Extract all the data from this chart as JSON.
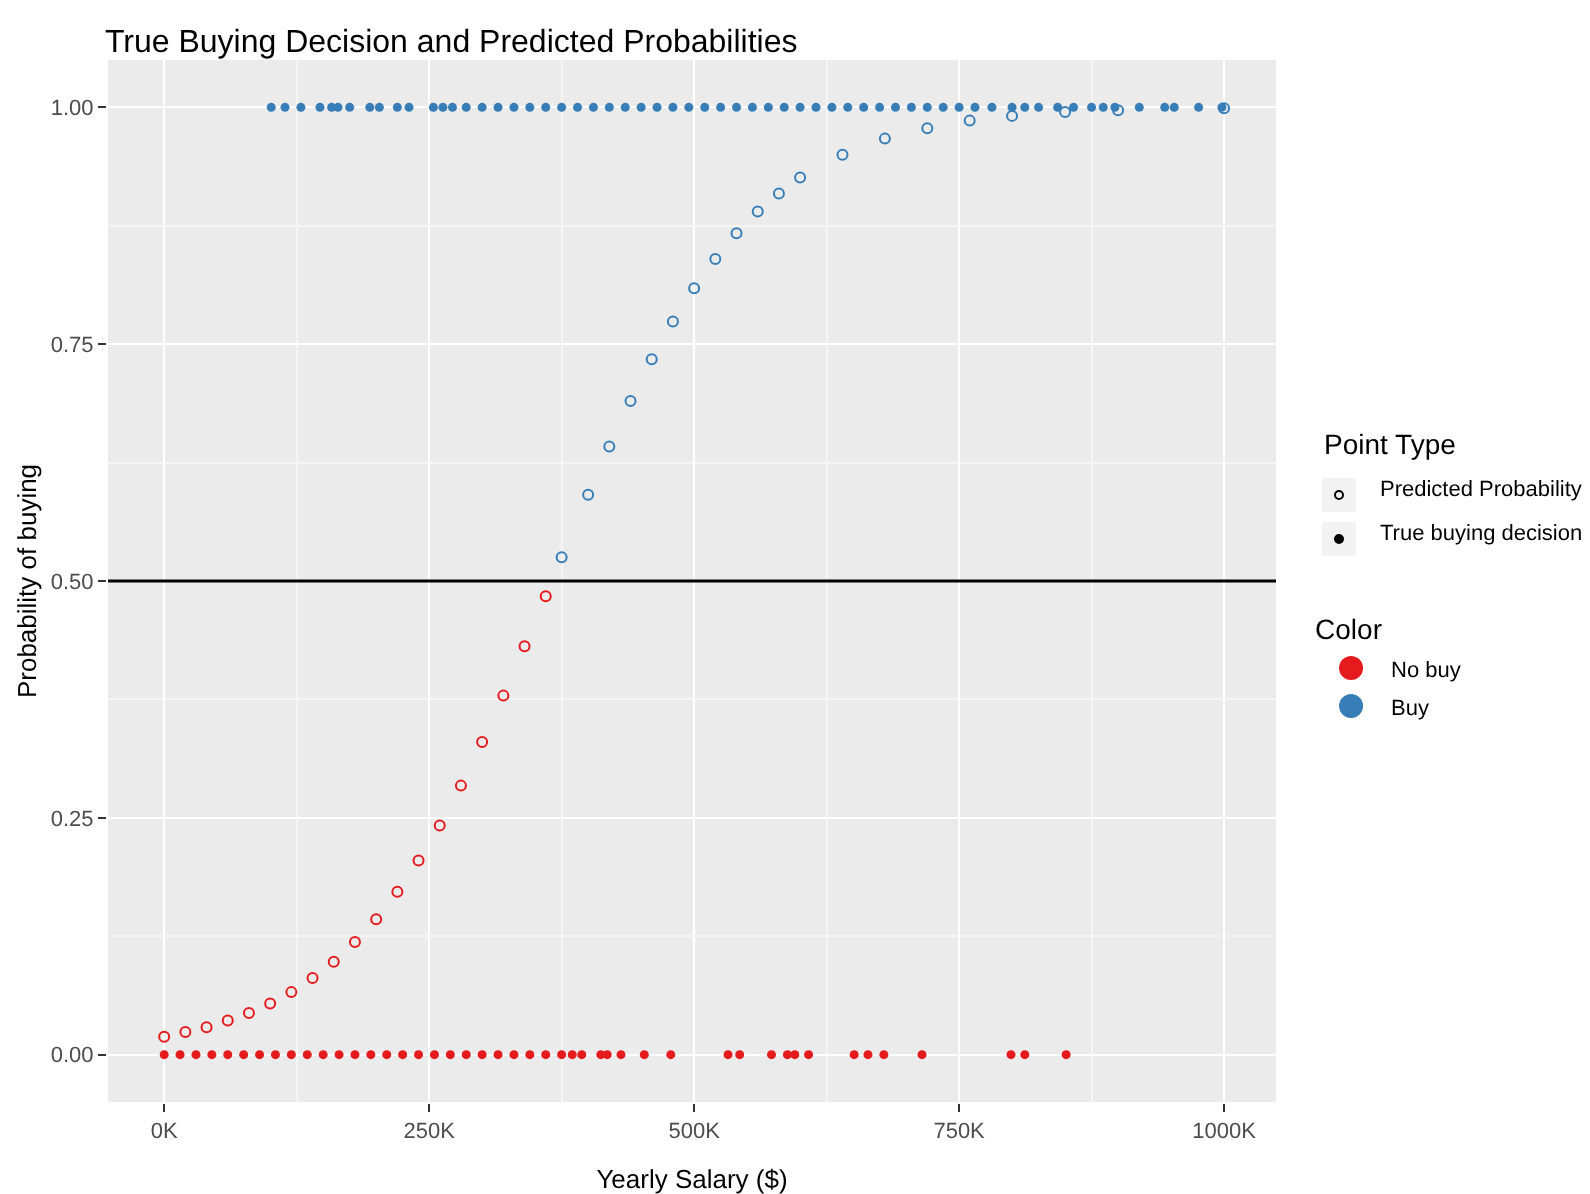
{
  "chart_data": {
    "type": "scatter",
    "title": "True Buying Decision and Predicted Probabilities",
    "xlabel": "Yearly Salary ($)",
    "ylabel": "Probability of buying",
    "legend_title": "Color",
    "legend": "right",
    "grid": true,
    "marker": "circle",
    "annotations": [
      "Point Type",
      "Predicted Probability",
      "True buying decision"
    ],
    "xlim": [
      -53,
      1049
    ],
    "xticks": [
      {
        "value": 0,
        "label": "0K"
      },
      {
        "value": 250,
        "label": "250K"
      },
      {
        "value": 500,
        "label": "500K"
      },
      {
        "value": 750,
        "label": "750K"
      },
      {
        "value": 1000,
        "label": "1000K"
      }
    ],
    "ylim": [
      -0.05,
      1.05
    ],
    "yticks": [
      {
        "value": 0,
        "label": "0.00"
      },
      {
        "value": 0.25,
        "label": "0.25"
      },
      {
        "value": 0.5,
        "label": "0.50"
      },
      {
        "value": 0.75,
        "label": "0.75"
      },
      {
        "value": 1,
        "label": "1.00"
      }
    ],
    "ref_lines": [
      {
        "axis": "y",
        "value": 0.5,
        "color": "#000000"
      }
    ],
    "series": [
      {
        "name": "No buy",
        "color": "#e41a1c",
        "x": [
          0,
          15,
          30,
          45,
          60,
          75,
          90,
          105,
          120,
          135,
          150,
          165,
          180,
          195,
          210,
          225,
          240,
          255,
          270,
          285,
          300,
          315,
          330,
          345,
          360,
          375,
          385,
          394,
          412,
          418,
          431,
          453,
          478,
          532,
          543,
          573,
          588,
          595,
          608,
          651,
          664,
          679,
          715,
          799,
          812,
          851
        ],
        "values": [
          0,
          0,
          0,
          0,
          0,
          0,
          0,
          0,
          0,
          0,
          0,
          0,
          0,
          0,
          0,
          0,
          0,
          0,
          0,
          0,
          0,
          0,
          0,
          0,
          0,
          0,
          0,
          0,
          0,
          0,
          0,
          0,
          0,
          0,
          0,
          0,
          0,
          0,
          0,
          0,
          0,
          0,
          0,
          0,
          0,
          0
        ]
      },
      {
        "name": "Buy",
        "color": "#377eb8",
        "x": [
          101,
          114,
          129,
          147,
          158,
          164,
          175,
          194,
          203,
          220,
          231,
          254,
          263,
          272,
          285,
          300,
          315,
          330,
          345,
          360,
          375,
          390,
          405,
          420,
          435,
          450,
          465,
          480,
          495,
          510,
          525,
          540,
          555,
          570,
          585,
          600,
          615,
          630,
          645,
          660,
          675,
          690,
          705,
          720,
          735,
          750,
          765,
          781,
          800,
          812,
          825,
          843,
          858,
          875,
          886,
          897,
          920,
          944,
          953,
          976,
          998
        ],
        "values": [
          1,
          1,
          1,
          1,
          1,
          1,
          1,
          1,
          1,
          1,
          1,
          1,
          1,
          1,
          1,
          1,
          1,
          1,
          1,
          1,
          1,
          1,
          1,
          1,
          1,
          1,
          1,
          1,
          1,
          1,
          1,
          1,
          1,
          1,
          1,
          1,
          1,
          1,
          1,
          1,
          1,
          1,
          1,
          1,
          1,
          1,
          1,
          1,
          1,
          1,
          1,
          1,
          1,
          1,
          1,
          1,
          1,
          1,
          1,
          1,
          1
        ]
      },
      {
        "color": "#e41a1c",
        "x": [
          0,
          20,
          40,
          60,
          80,
          100,
          120,
          140,
          160,
          180,
          200,
          220,
          240,
          260,
          280,
          300,
          320,
          340,
          360
        ],
        "values": [
          0.019,
          0.024,
          0.029,
          0.036,
          0.044,
          0.054,
          0.066,
          0.081,
          0.098,
          0.119,
          0.143,
          0.172,
          0.205,
          0.242,
          0.284,
          0.33,
          0.379,
          0.431,
          0.484
        ]
      },
      {
        "color": "#377eb8",
        "x": [
          375,
          400,
          420,
          440,
          460,
          480,
          500,
          520,
          540,
          560,
          580,
          600,
          640,
          680,
          720,
          760,
          800,
          850,
          900,
          1000
        ],
        "values": [
          0.525,
          0.591,
          0.642,
          0.69,
          0.734,
          0.774,
          0.809,
          0.84,
          0.867,
          0.89,
          0.909,
          0.926,
          0.95,
          0.967,
          0.978,
          0.986,
          0.991,
          0.995,
          0.997,
          0.999
        ]
      }
    ]
  }
}
